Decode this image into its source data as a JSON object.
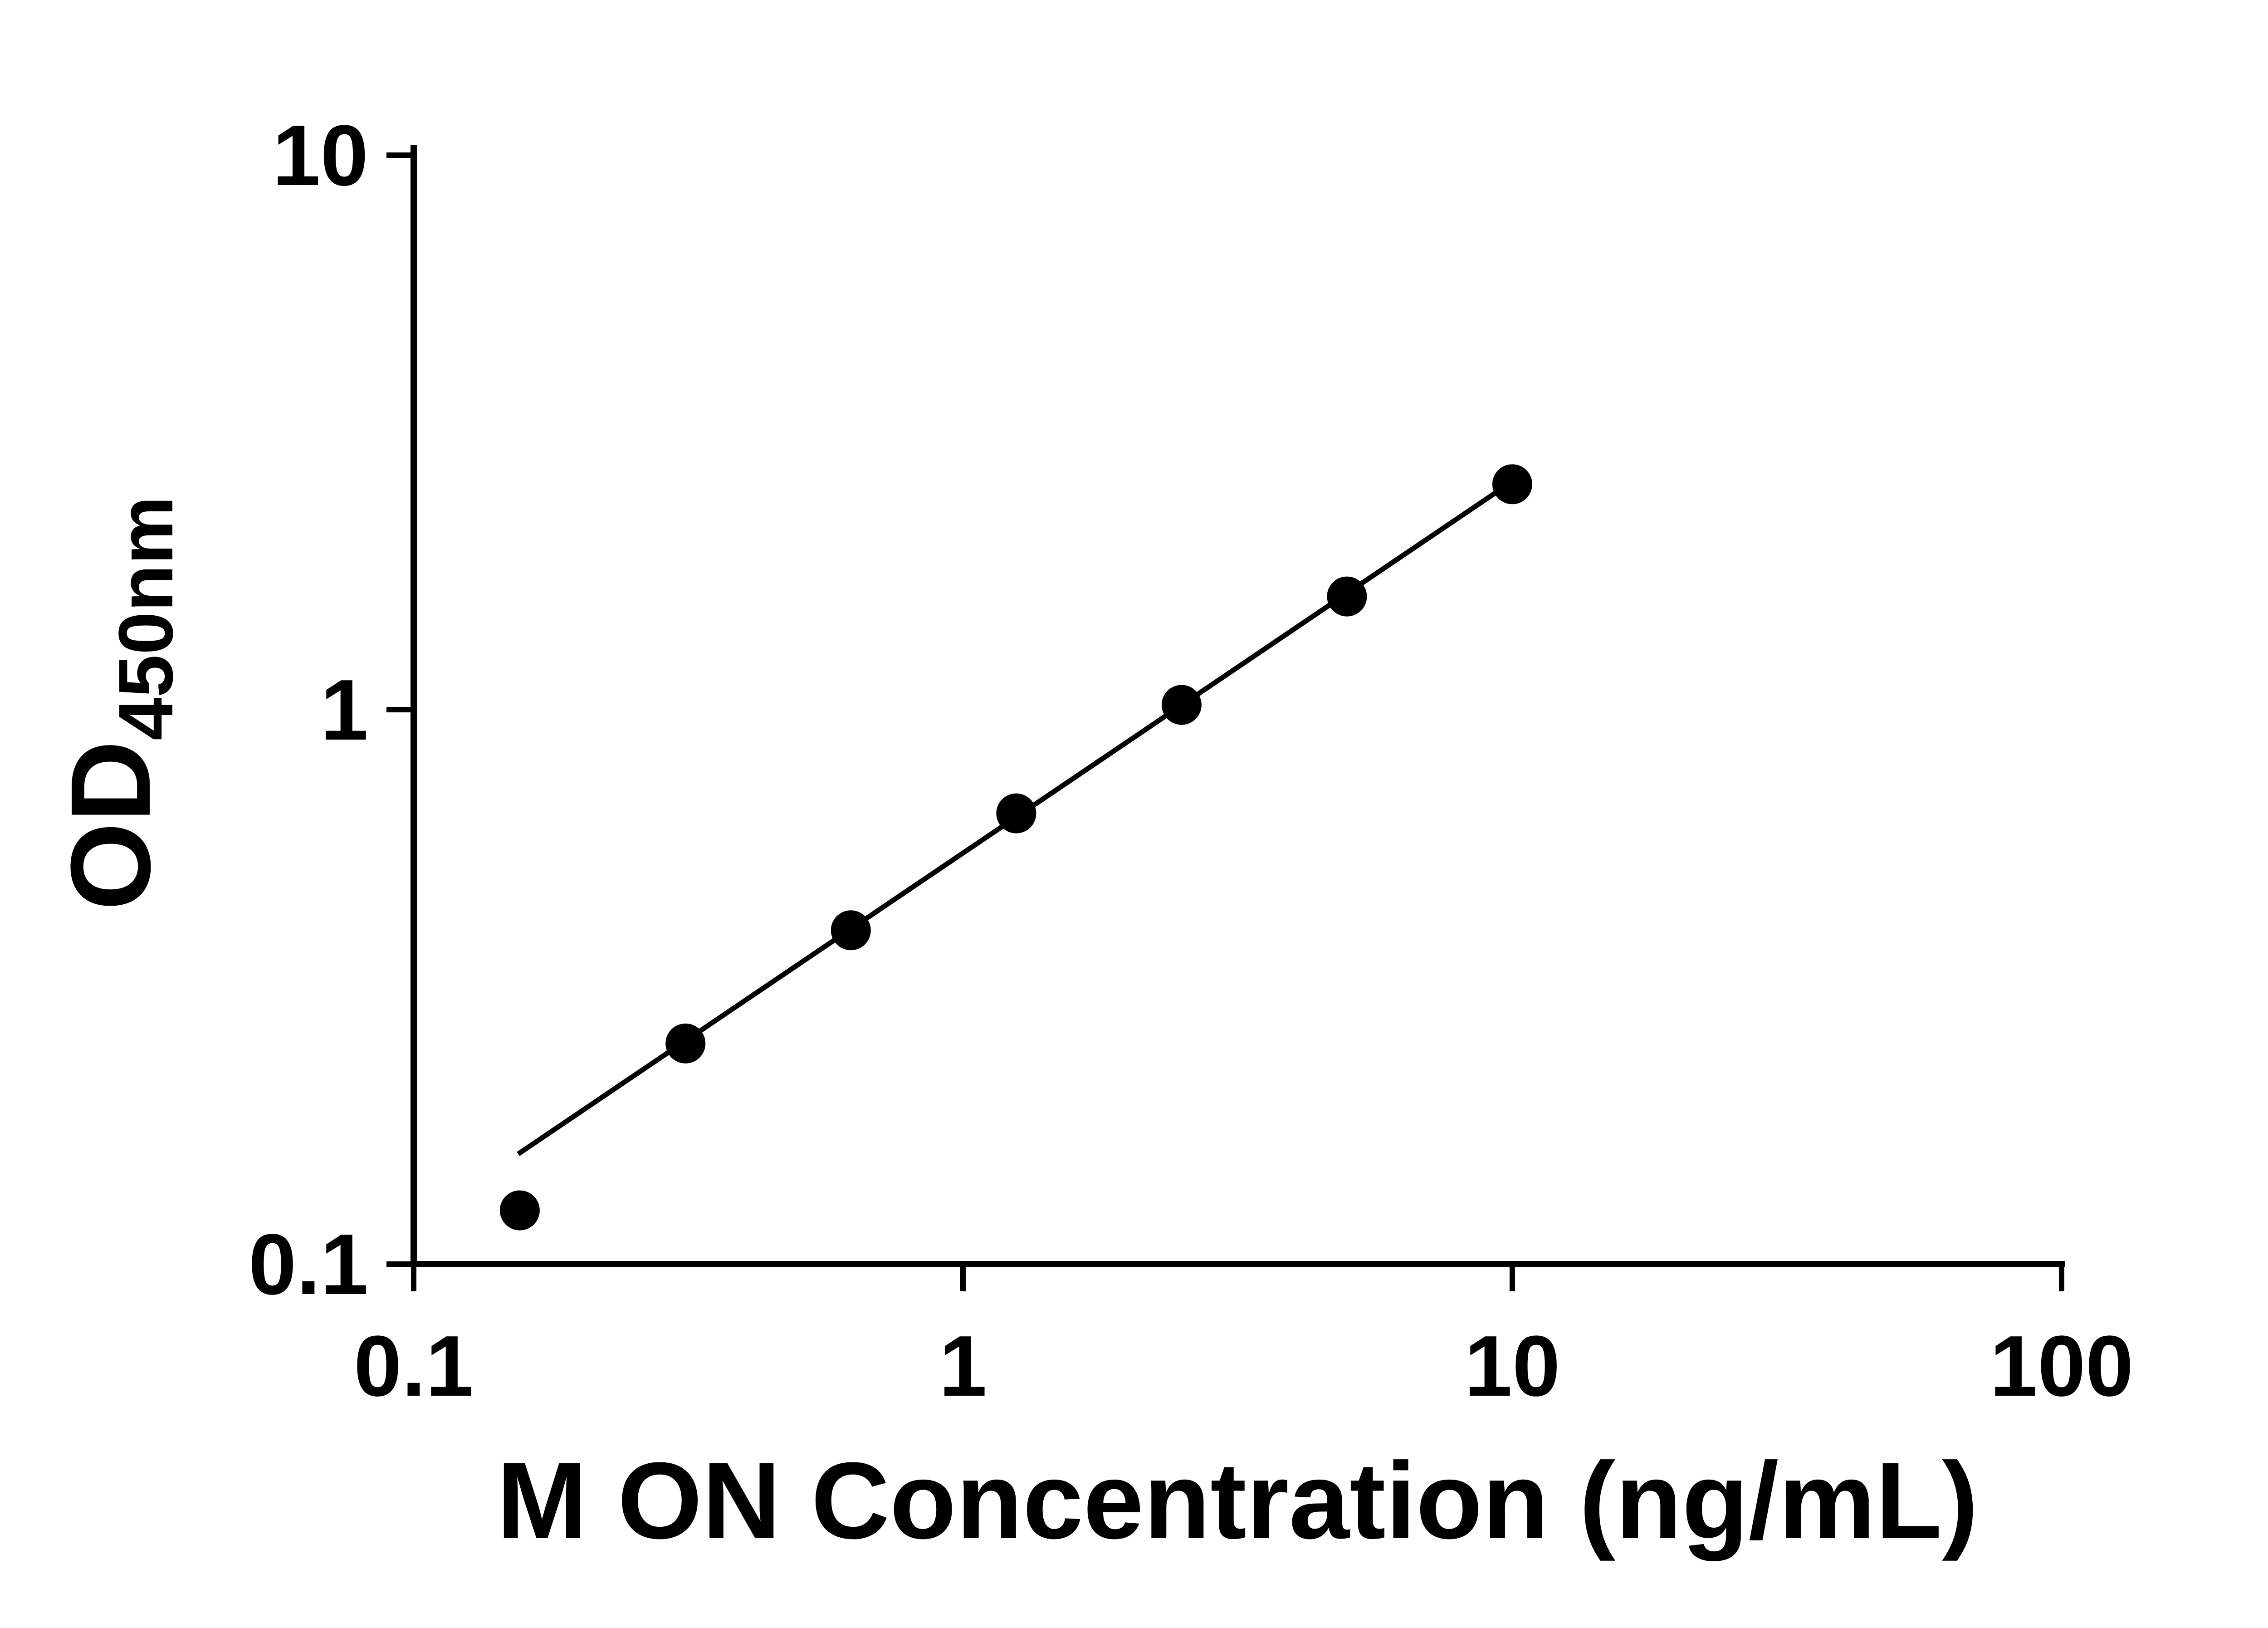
{
  "figure": {
    "background_color": "#ffffff",
    "foreground_color": "#000000"
  },
  "chart_data": {
    "type": "scatter",
    "title": "",
    "xlabel": "M ON Concentration (ng/mL)",
    "ylabel_main": "OD",
    "ylabel_sub": "450nm",
    "x_scale": "log",
    "y_scale": "log",
    "xlim": [
      0.1,
      100
    ],
    "ylim": [
      0.1,
      10
    ],
    "grid": false,
    "legend": "none",
    "x_ticks": [
      {
        "value": 0.1,
        "label": "0.1"
      },
      {
        "value": 1,
        "label": "1"
      },
      {
        "value": 10,
        "label": "10"
      },
      {
        "value": 100,
        "label": "100"
      }
    ],
    "y_ticks": [
      {
        "value": 0.1,
        "label": "0.1"
      },
      {
        "value": 1,
        "label": "1"
      },
      {
        "value": 10,
        "label": "10"
      }
    ],
    "series": [
      {
        "name": "standard-curve",
        "marker": "circle",
        "color": "#000000",
        "points": [
          {
            "x": 0.156,
            "y": 0.125
          },
          {
            "x": 0.3125,
            "y": 0.25
          },
          {
            "x": 0.625,
            "y": 0.4
          },
          {
            "x": 1.25,
            "y": 0.65
          },
          {
            "x": 2.5,
            "y": 1.02
          },
          {
            "x": 5,
            "y": 1.6
          },
          {
            "x": 10,
            "y": 2.55
          }
        ]
      }
    ],
    "fit_line": {
      "x1": 0.155,
      "y1": 0.158,
      "x2": 10,
      "y2": 2.58,
      "color": "#000000"
    }
  }
}
